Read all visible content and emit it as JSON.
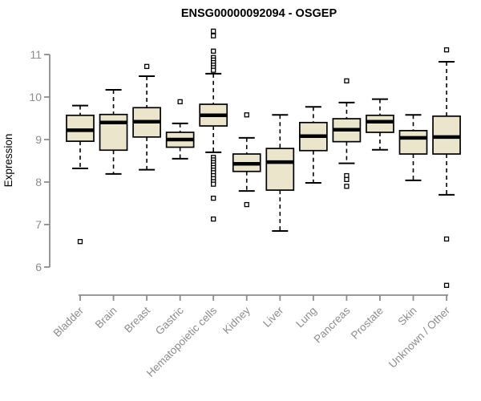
{
  "chart_data": {
    "type": "boxplot",
    "title": "ENSG00000092094 - OSGEP",
    "ylabel": "Expression",
    "xlabel": "",
    "legend": null,
    "grid": false,
    "y_ticks": [
      6,
      7,
      8,
      9,
      10,
      11
    ],
    "ylim": [
      5.3,
      11.7
    ],
    "colors": {
      "box_fill": "#EBE6CB",
      "box_border": "#000000",
      "median": "#000000",
      "whisker": "#000000",
      "axis": "#8C8C8C",
      "tick_label": "#8C8C8C",
      "title": "#000000"
    },
    "categories": [
      "Bladder",
      "Brain",
      "Breast",
      "Gastric",
      "Hematopoietic cells",
      "Kidney",
      "Liver",
      "Lung",
      "Pancreas",
      "Prostate",
      "Skin",
      "Unknown / Other"
    ],
    "boxes": [
      {
        "label": "Bladder",
        "whisker_low": 8.32,
        "q1": 8.96,
        "median": 9.22,
        "q3": 9.57,
        "whisker_high": 9.8,
        "outliers": [
          6.6
        ]
      },
      {
        "label": "Brain",
        "whisker_low": 8.19,
        "q1": 8.75,
        "median": 9.4,
        "q3": 9.59,
        "whisker_high": 10.17,
        "outliers": []
      },
      {
        "label": "Breast",
        "whisker_low": 8.29,
        "q1": 9.06,
        "median": 9.42,
        "q3": 9.75,
        "whisker_high": 10.49,
        "outliers": [
          10.72
        ]
      },
      {
        "label": "Gastric",
        "whisker_low": 8.55,
        "q1": 8.82,
        "median": 9.0,
        "q3": 9.17,
        "whisker_high": 9.38,
        "outliers": [
          9.89
        ]
      },
      {
        "label": "Hematopoietic cells",
        "whisker_low": 8.7,
        "q1": 9.32,
        "median": 9.57,
        "q3": 9.83,
        "whisker_high": 10.55,
        "outliers": [
          11.55,
          11.44,
          11.08,
          10.93,
          10.87,
          10.81,
          10.75,
          10.69,
          10.63,
          8.58,
          8.52,
          8.46,
          8.4,
          8.34,
          8.28,
          8.22,
          8.15,
          8.08,
          8.01,
          7.95,
          7.62,
          7.13
        ]
      },
      {
        "label": "Kidney",
        "whisker_low": 7.79,
        "q1": 8.25,
        "median": 8.43,
        "q3": 8.66,
        "whisker_high": 9.04,
        "outliers": [
          9.58,
          7.47
        ]
      },
      {
        "label": "Liver",
        "whisker_low": 6.85,
        "q1": 7.81,
        "median": 8.47,
        "q3": 8.79,
        "whisker_high": 9.58,
        "outliers": []
      },
      {
        "label": "Lung",
        "whisker_low": 7.98,
        "q1": 8.74,
        "median": 9.08,
        "q3": 9.4,
        "whisker_high": 9.77,
        "outliers": []
      },
      {
        "label": "Pancreas",
        "whisker_low": 8.44,
        "q1": 8.95,
        "median": 9.23,
        "q3": 9.49,
        "whisker_high": 9.87,
        "outliers": [
          10.38,
          8.15,
          8.06,
          7.9
        ]
      },
      {
        "label": "Prostate",
        "whisker_low": 8.76,
        "q1": 9.17,
        "median": 9.42,
        "q3": 9.57,
        "whisker_high": 9.95,
        "outliers": []
      },
      {
        "label": "Skin",
        "whisker_low": 8.04,
        "q1": 8.66,
        "median": 9.04,
        "q3": 9.21,
        "whisker_high": 9.58,
        "outliers": []
      },
      {
        "label": "Unknown / Other",
        "whisker_low": 7.7,
        "q1": 8.66,
        "median": 9.06,
        "q3": 9.55,
        "whisker_high": 10.83,
        "outliers": [
          11.11,
          6.66,
          5.57
        ]
      }
    ]
  }
}
